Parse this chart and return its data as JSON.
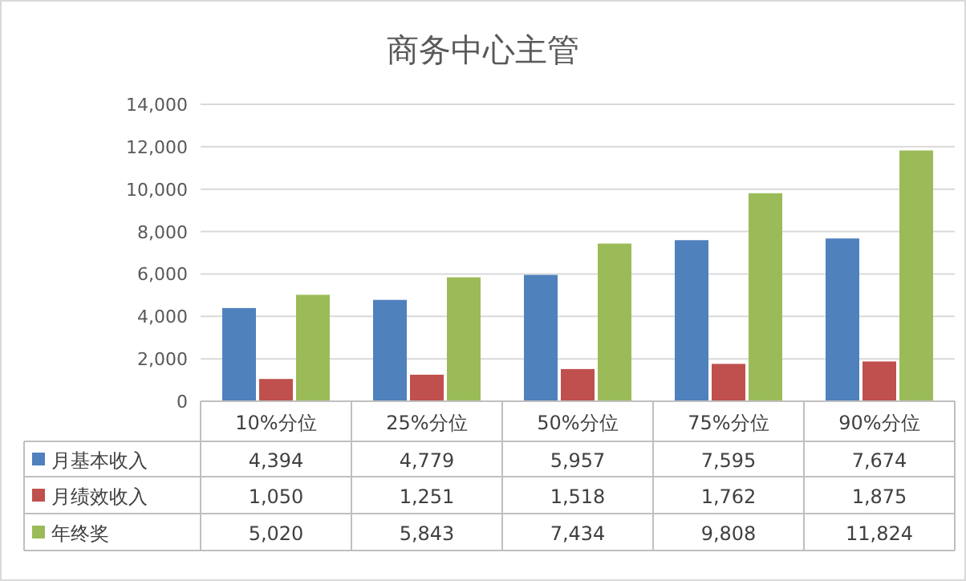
{
  "chart_data": {
    "type": "bar",
    "title": "商务中心主管",
    "categories": [
      "10%分位",
      "25%分位",
      "50%分位",
      "75%分位",
      "90%分位"
    ],
    "series": [
      {
        "name": "月基本收入",
        "color": "#4f81bd",
        "values": [
          4394,
          4779,
          5957,
          7595,
          7674
        ],
        "value_labels": [
          "4,394",
          "4,779",
          "5,957",
          "7,595",
          "7,674"
        ]
      },
      {
        "name": "月绩效收入",
        "color": "#c0504d",
        "values": [
          1050,
          1251,
          1518,
          1762,
          1875
        ],
        "value_labels": [
          "1,050",
          "1,251",
          "1,518",
          "1,762",
          "1,875"
        ]
      },
      {
        "name": "年终奖",
        "color": "#9bbb59",
        "values": [
          5020,
          5843,
          7434,
          9808,
          11824
        ],
        "value_labels": [
          "5,020",
          "5,843",
          "7,434",
          "9,808",
          "11,824"
        ]
      }
    ],
    "ylim": [
      0,
      14000
    ],
    "yticks": [
      {
        "value": 0,
        "label": "0"
      },
      {
        "value": 2000,
        "label": "2,000"
      },
      {
        "value": 4000,
        "label": "4,000"
      },
      {
        "value": 6000,
        "label": "6,000"
      },
      {
        "value": 8000,
        "label": "8,000"
      },
      {
        "value": 10000,
        "label": "10,000"
      },
      {
        "value": 12000,
        "label": "12,000"
      },
      {
        "value": 14000,
        "label": "14,000"
      }
    ],
    "grid": "y",
    "legend": "bottom"
  }
}
